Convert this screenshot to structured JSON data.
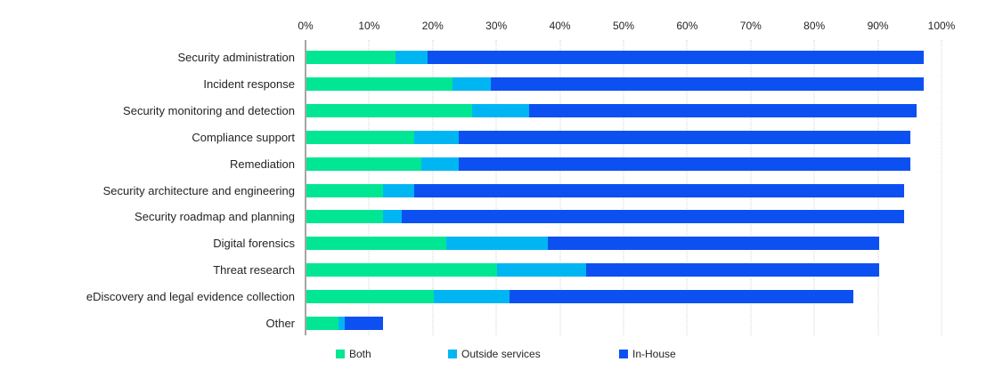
{
  "colors": {
    "background": "#FFFFFF",
    "text": "#252423",
    "axis_line": "#A6A6A6",
    "gridline": "#D3D3D3",
    "series_both": "#00E693",
    "series_outside_services": "#00B6F2",
    "series_in_house": "#0D50F2"
  },
  "chart_data": {
    "type": "bar",
    "orientation": "horizontal",
    "stacked": true,
    "title": "",
    "xlabel": "",
    "ylabel": "",
    "categories": [
      "Security administration",
      "Incident response",
      "Security monitoring and detection",
      "Compliance support",
      "Remediation",
      "Security architecture and engineering",
      "Security roadmap and planning",
      "Digital forensics",
      "Threat research",
      "eDiscovery and legal evidence collection",
      "Other"
    ],
    "series": [
      {
        "name": "Both",
        "color": "#00E693",
        "values": [
          14,
          23,
          26,
          17,
          18,
          12,
          12,
          22,
          30,
          20,
          5
        ]
      },
      {
        "name": "Outside services",
        "color": "#00B6F2",
        "values": [
          5,
          6,
          9,
          7,
          6,
          5,
          3,
          16,
          14,
          12,
          1
        ]
      },
      {
        "name": "In-House",
        "color": "#0D50F2",
        "values": [
          78,
          68,
          61,
          71,
          71,
          77,
          79,
          52,
          46,
          54,
          6
        ]
      }
    ],
    "totals": [
      97,
      97,
      96,
      95,
      95,
      94,
      94,
      90,
      90,
      86,
      12
    ],
    "x_axis": {
      "min": 0,
      "max": 100,
      "step": 10,
      "unit": "%",
      "position": "top",
      "tick_labels": [
        "0%",
        "10%",
        "20%",
        "30%",
        "40%",
        "50%",
        "60%",
        "70%",
        "80%",
        "90%",
        "100%"
      ]
    },
    "grid": {
      "vertical": true,
      "style": "dotted"
    },
    "legend_position": "bottom"
  }
}
